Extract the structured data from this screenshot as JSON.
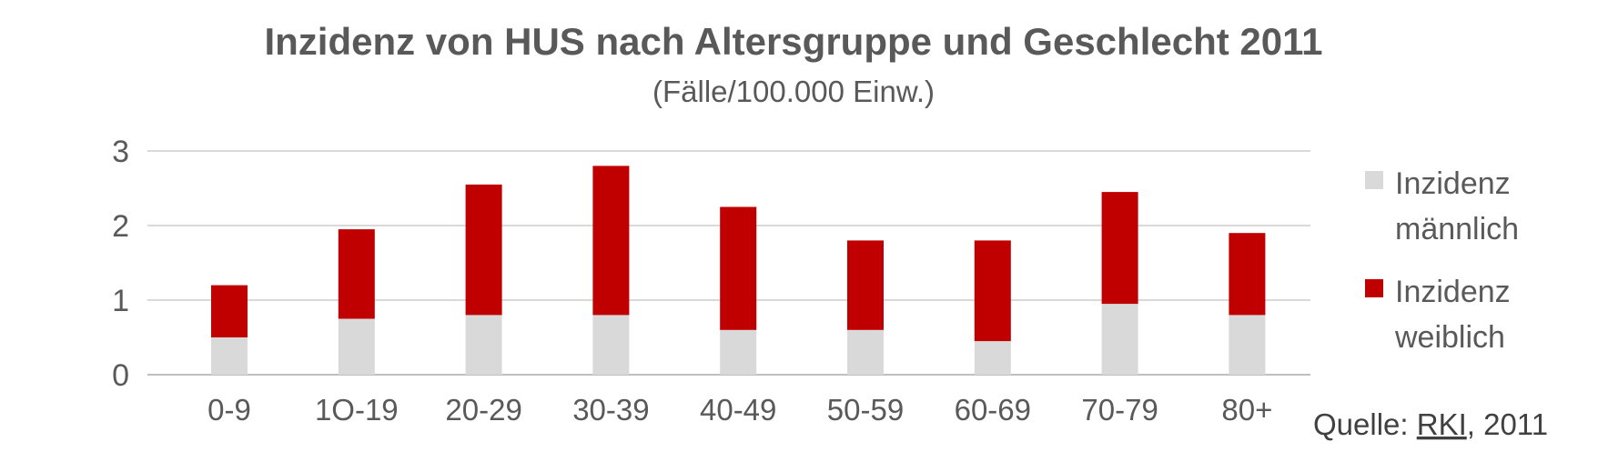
{
  "chart_data": {
    "type": "bar",
    "stacked": true,
    "title": "Inzidenz von HUS nach Altersgruppe und Geschlecht 2011",
    "subtitle": "(Fälle/100.000 Einw.)",
    "categories": [
      "0-9",
      "1O-19",
      "20-29",
      "30-39",
      "40-49",
      "50-59",
      "60-69",
      "70-79",
      "80+"
    ],
    "series": [
      {
        "name": "Inzidenz männlich",
        "name_lines": [
          "Inzidenz",
          "männlich"
        ],
        "color": "#d9d9d9",
        "values": [
          0.5,
          0.75,
          0.8,
          0.8,
          0.6,
          0.6,
          0.45,
          0.95,
          0.8
        ]
      },
      {
        "name": "Inzidenz weiblich",
        "name_lines": [
          "Inzidenz",
          "weiblich"
        ],
        "color": "#c00000",
        "values": [
          0.7,
          1.2,
          1.75,
          2.0,
          1.65,
          1.2,
          1.35,
          1.5,
          1.1
        ]
      }
    ],
    "ylim": [
      0,
      3
    ],
    "yticks": [
      "0",
      "1",
      "2",
      "3"
    ],
    "grid": true,
    "legend": "right"
  },
  "source": {
    "prefix": "Quelle: ",
    "link": "RKI",
    "suffix": ", 2011"
  },
  "colors": {
    "text": "#595959",
    "grid": "#d9d9d9",
    "axis": "#bfbfbf"
  }
}
